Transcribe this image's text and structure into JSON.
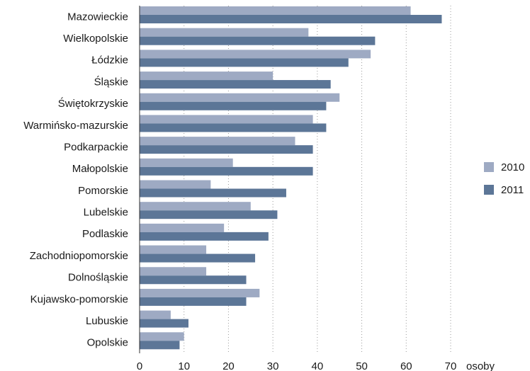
{
  "chart_data": {
    "type": "bar",
    "orientation": "horizontal",
    "categories": [
      "Mazowieckie",
      "Wielkopolskie",
      "Łódzkie",
      "Śląskie",
      "Świętokrzyskie",
      "Warmińsko-mazurskie",
      "Podkarpackie",
      "Małopolskie",
      "Pomorskie",
      "Lubelskie",
      "Podlaskie",
      "Zachodniopomorskie",
      "Dolnośląskie",
      "Kujawsko-pomorskie",
      "Lubuskie",
      "Opolskie"
    ],
    "series": [
      {
        "name": "2010",
        "color": "#9eaac3",
        "values": [
          61,
          38,
          52,
          30,
          45,
          39,
          35,
          21,
          16,
          25,
          19,
          15,
          15,
          27,
          7,
          10
        ]
      },
      {
        "name": "2011",
        "color": "#5c7697",
        "values": [
          68,
          53,
          47,
          43,
          42,
          42,
          39,
          39,
          33,
          31,
          29,
          26,
          24,
          24,
          11,
          9
        ]
      }
    ],
    "xlim": [
      0,
      70
    ],
    "xticks": [
      "0",
      "10",
      "20",
      "30",
      "40",
      "50",
      "60",
      "70"
    ],
    "x_unit": "osoby",
    "grid": "vertical dotted",
    "legend_position": "right"
  }
}
